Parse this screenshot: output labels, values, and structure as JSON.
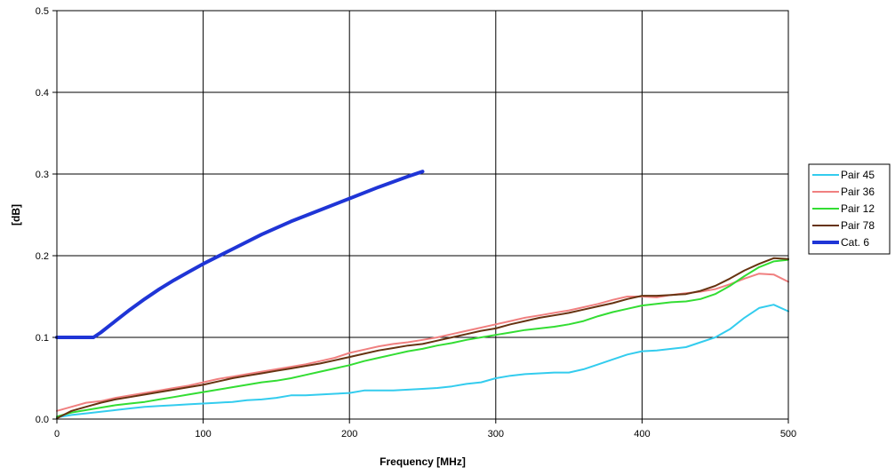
{
  "chart_data": {
    "type": "line",
    "xlabel": "Frequency [MHz]",
    "ylabel": "[dB]",
    "xlim": [
      0,
      500
    ],
    "ylim": [
      0,
      0.5
    ],
    "xticks": [
      0,
      100,
      200,
      300,
      400,
      500
    ],
    "yticks": [
      0.0,
      0.1,
      0.2,
      0.3,
      0.4,
      0.5
    ],
    "ytick_labels": [
      "0.0",
      "0.1",
      "0.2",
      "0.3",
      "0.4",
      "0.5"
    ],
    "grid": true,
    "legend_position": "right",
    "series": [
      {
        "name": "Pair 45",
        "color": "#33ccee",
        "width": 2,
        "x": [
          0,
          10,
          20,
          30,
          40,
          50,
          60,
          70,
          80,
          90,
          100,
          110,
          120,
          130,
          140,
          150,
          160,
          170,
          180,
          190,
          200,
          210,
          220,
          230,
          240,
          250,
          260,
          270,
          280,
          290,
          300,
          310,
          320,
          330,
          340,
          350,
          360,
          370,
          380,
          390,
          400,
          410,
          420,
          430,
          440,
          450,
          460,
          470,
          480,
          490,
          500
        ],
        "y": [
          0.002,
          0.005,
          0.007,
          0.009,
          0.011,
          0.013,
          0.015,
          0.016,
          0.017,
          0.018,
          0.019,
          0.02,
          0.021,
          0.023,
          0.024,
          0.026,
          0.029,
          0.029,
          0.03,
          0.031,
          0.032,
          0.035,
          0.035,
          0.035,
          0.036,
          0.037,
          0.038,
          0.04,
          0.043,
          0.045,
          0.05,
          0.053,
          0.055,
          0.056,
          0.057,
          0.057,
          0.061,
          0.067,
          0.073,
          0.079,
          0.083,
          0.084,
          0.086,
          0.088,
          0.094,
          0.1,
          0.11,
          0.124,
          0.136,
          0.14,
          0.132
        ]
      },
      {
        "name": "Pair 36",
        "color": "#f08080",
        "width": 2,
        "x": [
          0,
          10,
          20,
          30,
          40,
          50,
          60,
          70,
          80,
          90,
          100,
          110,
          120,
          130,
          140,
          150,
          160,
          170,
          180,
          190,
          200,
          210,
          220,
          230,
          240,
          250,
          260,
          270,
          280,
          290,
          300,
          310,
          320,
          330,
          340,
          350,
          360,
          370,
          380,
          390,
          400,
          410,
          420,
          430,
          440,
          450,
          460,
          470,
          480,
          490,
          500
        ],
        "y": [
          0.01,
          0.015,
          0.02,
          0.022,
          0.026,
          0.029,
          0.032,
          0.035,
          0.038,
          0.041,
          0.045,
          0.049,
          0.052,
          0.055,
          0.058,
          0.061,
          0.064,
          0.067,
          0.071,
          0.075,
          0.081,
          0.085,
          0.089,
          0.092,
          0.094,
          0.097,
          0.1,
          0.104,
          0.108,
          0.112,
          0.116,
          0.12,
          0.124,
          0.127,
          0.13,
          0.133,
          0.137,
          0.141,
          0.146,
          0.15,
          0.15,
          0.149,
          0.152,
          0.154,
          0.156,
          0.159,
          0.165,
          0.172,
          0.178,
          0.177,
          0.168
        ]
      },
      {
        "name": "Pair 12",
        "color": "#33dd33",
        "width": 2,
        "x": [
          0,
          10,
          20,
          30,
          40,
          50,
          60,
          70,
          80,
          90,
          100,
          110,
          120,
          130,
          140,
          150,
          160,
          170,
          180,
          190,
          200,
          210,
          220,
          230,
          240,
          250,
          260,
          270,
          280,
          290,
          300,
          310,
          320,
          330,
          340,
          350,
          360,
          370,
          380,
          390,
          400,
          410,
          420,
          430,
          440,
          450,
          460,
          470,
          480,
          490,
          500
        ],
        "y": [
          0.003,
          0.008,
          0.011,
          0.014,
          0.017,
          0.019,
          0.021,
          0.024,
          0.027,
          0.03,
          0.033,
          0.036,
          0.039,
          0.042,
          0.045,
          0.047,
          0.05,
          0.054,
          0.058,
          0.062,
          0.066,
          0.071,
          0.075,
          0.079,
          0.083,
          0.086,
          0.09,
          0.093,
          0.097,
          0.1,
          0.103,
          0.106,
          0.109,
          0.111,
          0.113,
          0.116,
          0.12,
          0.126,
          0.131,
          0.135,
          0.139,
          0.141,
          0.143,
          0.144,
          0.147,
          0.153,
          0.163,
          0.175,
          0.186,
          0.193,
          0.195
        ]
      },
      {
        "name": "Pair 78",
        "color": "#663311",
        "width": 2,
        "x": [
          0,
          10,
          20,
          30,
          40,
          50,
          60,
          70,
          80,
          90,
          100,
          110,
          120,
          130,
          140,
          150,
          160,
          170,
          180,
          190,
          200,
          210,
          220,
          230,
          240,
          250,
          260,
          270,
          280,
          290,
          300,
          310,
          320,
          330,
          340,
          350,
          360,
          370,
          380,
          390,
          400,
          410,
          420,
          430,
          440,
          450,
          460,
          470,
          480,
          490,
          500
        ],
        "y": [
          0.001,
          0.01,
          0.015,
          0.02,
          0.024,
          0.027,
          0.03,
          0.033,
          0.036,
          0.039,
          0.042,
          0.046,
          0.05,
          0.053,
          0.056,
          0.059,
          0.062,
          0.065,
          0.068,
          0.072,
          0.076,
          0.08,
          0.084,
          0.087,
          0.09,
          0.092,
          0.096,
          0.1,
          0.104,
          0.108,
          0.111,
          0.116,
          0.12,
          0.124,
          0.127,
          0.13,
          0.134,
          0.138,
          0.142,
          0.147,
          0.151,
          0.151,
          0.152,
          0.153,
          0.157,
          0.163,
          0.172,
          0.182,
          0.19,
          0.197,
          0.196
        ]
      },
      {
        "name": "Cat. 6",
        "color": "#1f35d6",
        "width": 4,
        "x": [
          0,
          25,
          30,
          40,
          50,
          60,
          70,
          80,
          90,
          100,
          120,
          140,
          160,
          180,
          200,
          220,
          240,
          250
        ],
        "y": [
          0.1,
          0.1,
          0.106,
          0.12,
          0.134,
          0.147,
          0.159,
          0.17,
          0.18,
          0.19,
          0.208,
          0.226,
          0.242,
          0.256,
          0.27,
          0.284,
          0.297,
          0.303
        ]
      }
    ]
  }
}
